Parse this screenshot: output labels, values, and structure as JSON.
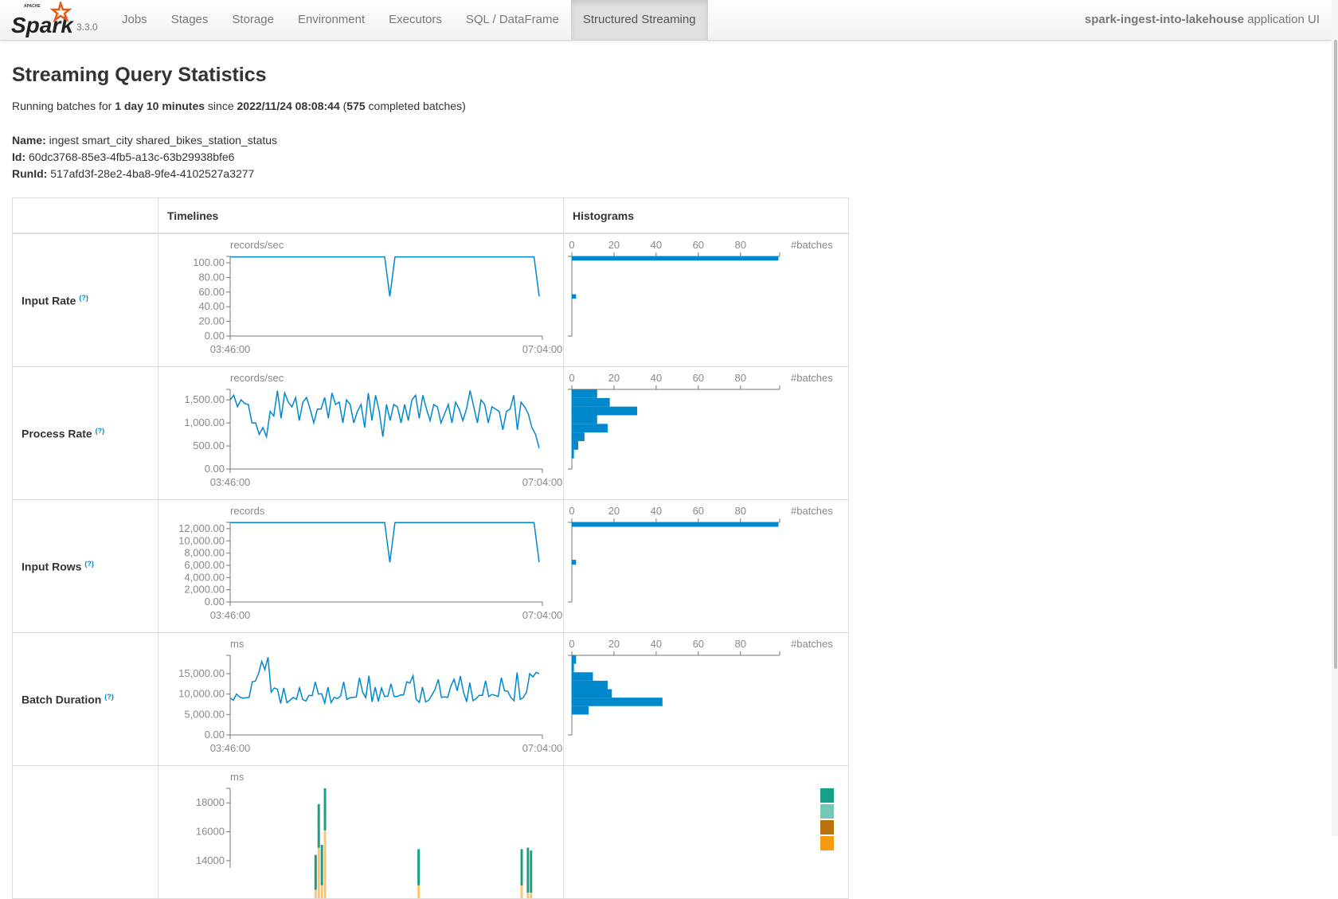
{
  "nav": {
    "version": "3.3.0",
    "items": [
      "Jobs",
      "Stages",
      "Storage",
      "Environment",
      "Executors",
      "SQL / DataFrame",
      "Structured Streaming"
    ],
    "active": "Structured Streaming",
    "app_name": "spark-ingest-into-lakehouse",
    "app_suffix": " application UI"
  },
  "page": {
    "title": "Streaming Query Statistics",
    "summary": {
      "prefix": "Running batches for ",
      "duration": "1 day 10 minutes",
      "since": " since ",
      "start": "2022/11/24 08:08:44",
      "open": " (",
      "count": "575",
      "suffix": " completed batches)"
    },
    "name_label": "Name:",
    "name": " ingest smart_city shared_bikes_station_status",
    "id_label": "Id:",
    "id": " 60dc3768-85e3-4fb5-a13c-63b29938bfe6",
    "runid_label": "RunId:",
    "runid": " 517afd3f-28e2-4ba8-9fe4-4102527a3277"
  },
  "table": {
    "headers": [
      "",
      "Timelines",
      "Histograms"
    ],
    "help": "(?)"
  },
  "colors": {
    "line": "#0088cc",
    "legend": [
      "#16a085",
      "#76c7b7",
      "#b8730f",
      "#f39c12",
      "#fdc470"
    ]
  },
  "chart_data": [
    {
      "type": "line",
      "label": "Input Rate",
      "unit": "records/sec",
      "ymax": 108.7,
      "yticks": [
        0,
        20,
        40,
        60,
        80,
        100
      ],
      "ytick_labels": [
        "0.00",
        "20.00",
        "40.00",
        "60.00",
        "80.00",
        "100.00"
      ],
      "xtick_labels": [
        "03:46:00",
        "07:04:00"
      ],
      "values": [
        108,
        108,
        108,
        108,
        108,
        108,
        108,
        108,
        108,
        108,
        108,
        108,
        108,
        108,
        108,
        108,
        108,
        108,
        108,
        108,
        108,
        108,
        108,
        108,
        108,
        108,
        108,
        108,
        108,
        108,
        108,
        54,
        108,
        108,
        108,
        108,
        108,
        108,
        108,
        108,
        108,
        108,
        108,
        108,
        108,
        108,
        108,
        108,
        108,
        108,
        108,
        108,
        108,
        108,
        108,
        108,
        108,
        108,
        108,
        108,
        54
      ],
      "hist": {
        "xlabel": "#batches",
        "xticks": [
          0,
          20,
          40,
          60,
          80
        ],
        "xmax": 98.6,
        "bins": [
          [
            103,
            108.7,
            98
          ],
          [
            51,
            57,
            2
          ]
        ]
      }
    },
    {
      "type": "line",
      "label": "Process Rate",
      "unit": "records/sec",
      "ymax": 1727,
      "yticks": [
        0,
        500,
        1000,
        1500
      ],
      "ytick_labels": [
        "0.00",
        "500.00",
        "1,000.00",
        "1,500.00"
      ],
      "xtick_labels": [
        "03:46:00",
        "07:04:00"
      ],
      "values": [
        1500,
        1600,
        1350,
        1500,
        1420,
        1400,
        1000,
        1000,
        750,
        900,
        700,
        1250,
        1150,
        1700,
        1100,
        1650,
        1450,
        1350,
        1550,
        1050,
        1450,
        1550,
        1300,
        1000,
        1300,
        1300,
        1550,
        1100,
        1650,
        1400,
        1450,
        1000,
        1500,
        1400,
        1000,
        1250,
        1400,
        900,
        1650,
        1050,
        1600,
        1250,
        700,
        1400,
        1050,
        1400,
        1350,
        1000,
        1400,
        1050,
        1500,
        1600,
        1100,
        1600,
        1300,
        1050,
        1400,
        1350,
        1000,
        1200,
        1400,
        1000,
        1450,
        1300,
        1050,
        1300,
        1700,
        1350,
        1000,
        1500,
        1400,
        1000,
        1350,
        1300,
        1250,
        850,
        1250,
        1300,
        1600,
        850,
        1450,
        1350,
        1200,
        900,
        750,
        450
      ],
      "hist": {
        "xlabel": "#batches",
        "xticks": [
          0,
          20,
          40,
          60,
          80
        ],
        "xmax": 98.6,
        "bins": [
          [
            1540,
            1727,
            12
          ],
          [
            1353,
            1540,
            18
          ],
          [
            1166,
            1353,
            31
          ],
          [
            979,
            1166,
            12
          ],
          [
            792,
            979,
            17
          ],
          [
            605,
            792,
            6
          ],
          [
            418,
            605,
            3
          ],
          [
            231,
            418,
            1
          ]
        ]
      }
    },
    {
      "type": "line",
      "label": "Input Rows",
      "unit": "records",
      "ymax": 13030,
      "yticks": [
        0,
        2000,
        4000,
        6000,
        8000,
        10000,
        12000
      ],
      "ytick_labels": [
        "0.00",
        "2,000.00",
        "4,000.00",
        "6,000.00",
        "8,000.00",
        "10,000.00",
        "12,000.00"
      ],
      "xtick_labels": [
        "03:46:00",
        "07:04:00"
      ],
      "values": [
        13000,
        13000,
        13000,
        13000,
        13000,
        13000,
        13000,
        13000,
        13000,
        13000,
        13000,
        13000,
        13000,
        13000,
        13000,
        13000,
        13000,
        13000,
        13000,
        13000,
        13000,
        13000,
        13000,
        13000,
        13000,
        13000,
        13000,
        13000,
        13000,
        13000,
        13000,
        6500,
        13000,
        13000,
        13000,
        13000,
        13000,
        13000,
        13000,
        13000,
        13000,
        13000,
        13000,
        13000,
        13000,
        13000,
        13000,
        13000,
        13000,
        13000,
        13000,
        13000,
        13000,
        13000,
        13000,
        13000,
        13000,
        13000,
        13000,
        13000,
        6500
      ],
      "hist": {
        "xlabel": "#batches",
        "xticks": [
          0,
          20,
          40,
          60,
          80
        ],
        "xmax": 98.6,
        "bins": [
          [
            12300,
            13030,
            98
          ],
          [
            6100,
            6900,
            2
          ]
        ]
      }
    },
    {
      "type": "line",
      "label": "Batch Duration",
      "unit": "ms",
      "ymax": 19480,
      "yticks": [
        0,
        5000,
        10000,
        15000
      ],
      "ytick_labels": [
        "0.00",
        "5,000.00",
        "10,000.00",
        "15,000.00"
      ],
      "xtick_labels": [
        "03:46:00",
        "07:04:00"
      ],
      "values": [
        9000,
        8500,
        10000,
        9300,
        9000,
        9100,
        9200,
        13000,
        13200,
        15000,
        18000,
        16000,
        19000,
        10500,
        11500,
        11200,
        7700,
        11500,
        7900,
        8500,
        9200,
        8700,
        11500,
        8700,
        8300,
        9700,
        9600,
        13000,
        10000,
        10100,
        7800,
        11700,
        7900,
        9200,
        8900,
        9500,
        13000,
        8700,
        9100,
        9200,
        9300,
        14000,
        10500,
        9100,
        14500,
        8100,
        11700,
        8200,
        11500,
        9400,
        9500,
        12500,
        9400,
        9400,
        9800,
        9800,
        13000,
        12700,
        14500,
        8700,
        8000,
        11700,
        8100,
        8500,
        9800,
        11200,
        13600,
        9200,
        9300,
        9200,
        12000,
        13600,
        10800,
        14400,
        10500,
        8100,
        12800,
        8400,
        8900,
        9700,
        9700,
        13300,
        9400,
        9900,
        9700,
        9400,
        14000,
        10800,
        10700,
        9200,
        8400,
        15300,
        8700,
        9200,
        10500,
        15000,
        14200,
        15300,
        15000
      ],
      "hist": {
        "xlabel": "#batches",
        "xticks": [
          0,
          20,
          40,
          60,
          80
        ],
        "xmax": 98.6,
        "bins": [
          [
            17410,
            19480,
            2
          ],
          [
            15340,
            17410,
            1
          ],
          [
            13270,
            15340,
            10
          ],
          [
            11200,
            13270,
            17
          ],
          [
            9130,
            11200,
            19
          ],
          [
            7060,
            9130,
            43
          ],
          [
            4990,
            7060,
            8
          ]
        ]
      }
    },
    {
      "type": "bar",
      "label": "",
      "unit": "ms",
      "ymin": 13500,
      "ymax": 19000,
      "yticks": [
        14000,
        16000,
        18000
      ],
      "ytick_labels": [
        "14000",
        "16000",
        "18000"
      ],
      "bars": [
        {
          "i": 27,
          "stack": [
            [
              0,
              14200,
              "#fdc470"
            ],
            [
              14200,
              14400,
              "#16a085"
            ]
          ]
        },
        {
          "i": 28,
          "stack": [
            [
              0,
              17100,
              "#fdc470"
            ],
            [
              17100,
              17900,
              "#16a085"
            ]
          ]
        },
        {
          "i": 29,
          "stack": [
            [
              0,
              14500,
              "#fdc470"
            ],
            [
              14500,
              15100,
              "#16a085"
            ]
          ]
        },
        {
          "i": 30,
          "stack": [
            [
              0,
              18300,
              "#fdc470"
            ],
            [
              18300,
              19000,
              "#16a085"
            ]
          ]
        },
        {
          "i": 60,
          "stack": [
            [
              0,
              14500,
              "#fdc470"
            ],
            [
              14500,
              14800,
              "#16a085"
            ]
          ]
        },
        {
          "i": 93,
          "stack": [
            [
              0,
              14500,
              "#fdc470"
            ],
            [
              14500,
              14800,
              "#16a085"
            ]
          ]
        },
        {
          "i": 95,
          "stack": [
            [
              0,
              14000,
              "#fdc470"
            ],
            [
              14000,
              14900,
              "#16a085"
            ]
          ]
        },
        {
          "i": 96,
          "stack": [
            [
              0,
              14000,
              "#fdc470"
            ],
            [
              14000,
              14700,
              "#16a085"
            ]
          ]
        }
      ]
    }
  ]
}
